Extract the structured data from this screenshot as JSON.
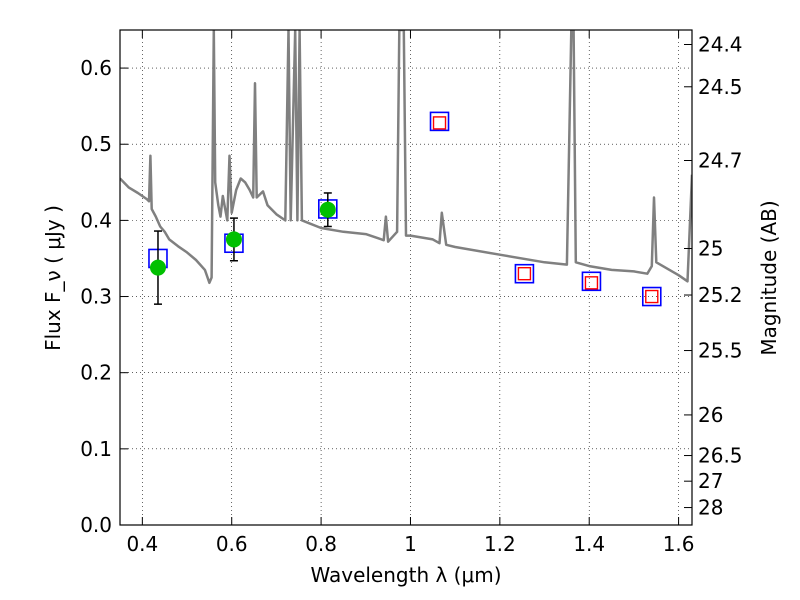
{
  "chart_data": {
    "type": "scatter",
    "title": "",
    "xlabel": "Wavelength  λ (μm)",
    "ylabel": "Flux  F_ν  ( μJy )",
    "y2label": "Magnitude (AB)",
    "xlim": [
      0.35,
      1.63
    ],
    "ylim": [
      0.0,
      0.65
    ],
    "grid": true,
    "legend": "none",
    "x_ticks": [
      "0.4",
      "0.6",
      "0.8",
      "1",
      "1.2",
      "1.4",
      "1.6"
    ],
    "y_ticks": [
      "0.0",
      "0.1",
      "0.2",
      "0.3",
      "0.4",
      "0.5",
      "0.6"
    ],
    "y2_ticks": [
      "24.4",
      "24.5",
      "24.7",
      "25",
      "25.2",
      "25.5",
      "26",
      "26.5",
      "27",
      "28"
    ],
    "series": [
      {
        "marker": "line",
        "color": "#808080",
        "points": [
          [
            0.35,
            0.455
          ],
          [
            0.37,
            0.443
          ],
          [
            0.39,
            0.436
          ],
          [
            0.41,
            0.428
          ],
          [
            0.415,
            0.425
          ],
          [
            0.418,
            0.485
          ],
          [
            0.421,
            0.415
          ],
          [
            0.43,
            0.405
          ],
          [
            0.44,
            0.392
          ],
          [
            0.45,
            0.385
          ],
          [
            0.46,
            0.375
          ],
          [
            0.48,
            0.366
          ],
          [
            0.5,
            0.358
          ],
          [
            0.52,
            0.348
          ],
          [
            0.54,
            0.335
          ],
          [
            0.55,
            0.318
          ],
          [
            0.555,
            0.325
          ],
          [
            0.56,
            0.65
          ],
          [
            0.563,
            0.45
          ],
          [
            0.57,
            0.42
          ],
          [
            0.575,
            0.405
          ],
          [
            0.58,
            0.432
          ],
          [
            0.59,
            0.4
          ],
          [
            0.595,
            0.485
          ],
          [
            0.6,
            0.41
          ],
          [
            0.61,
            0.44
          ],
          [
            0.62,
            0.455
          ],
          [
            0.63,
            0.45
          ],
          [
            0.64,
            0.44
          ],
          [
            0.648,
            0.43
          ],
          [
            0.652,
            0.58
          ],
          [
            0.656,
            0.43
          ],
          [
            0.67,
            0.438
          ],
          [
            0.68,
            0.42
          ],
          [
            0.7,
            0.408
          ],
          [
            0.72,
            0.4
          ],
          [
            0.727,
            0.65
          ],
          [
            0.732,
            0.4
          ],
          [
            0.742,
            0.65
          ],
          [
            0.747,
            0.4
          ],
          [
            0.752,
            0.65
          ],
          [
            0.757,
            0.4
          ],
          [
            0.77,
            0.397
          ],
          [
            0.8,
            0.39
          ],
          [
            0.85,
            0.385
          ],
          [
            0.9,
            0.382
          ],
          [
            0.92,
            0.378
          ],
          [
            0.94,
            0.374
          ],
          [
            0.945,
            0.405
          ],
          [
            0.95,
            0.372
          ],
          [
            0.97,
            0.385
          ],
          [
            0.975,
            0.65
          ],
          [
            0.985,
            0.65
          ],
          [
            0.99,
            0.38
          ],
          [
            1.0,
            0.38
          ],
          [
            1.05,
            0.375
          ],
          [
            1.065,
            0.37
          ],
          [
            1.07,
            0.41
          ],
          [
            1.08,
            0.368
          ],
          [
            1.1,
            0.365
          ],
          [
            1.2,
            0.355
          ],
          [
            1.3,
            0.345
          ],
          [
            1.35,
            0.342
          ],
          [
            1.36,
            0.65
          ],
          [
            1.365,
            0.65
          ],
          [
            1.37,
            0.345
          ],
          [
            1.4,
            0.34
          ],
          [
            1.45,
            0.335
          ],
          [
            1.5,
            0.333
          ],
          [
            1.53,
            0.33
          ],
          [
            1.54,
            0.34
          ],
          [
            1.545,
            0.43
          ],
          [
            1.55,
            0.345
          ],
          [
            1.6,
            0.328
          ],
          [
            1.62,
            0.32
          ],
          [
            1.63,
            0.46
          ]
        ]
      },
      {
        "marker": "open-square",
        "color": "#0000ff",
        "points": [
          [
            0.435,
            0.35
          ],
          [
            0.605,
            0.37
          ],
          [
            0.815,
            0.415
          ],
          [
            1.065,
            0.53
          ],
          [
            1.255,
            0.33
          ],
          [
            1.405,
            0.32
          ],
          [
            1.54,
            0.3
          ]
        ]
      },
      {
        "marker": "small-open-square",
        "color": "#ff0000",
        "points": [
          [
            1.065,
            0.528
          ],
          [
            1.255,
            0.33
          ],
          [
            1.405,
            0.318
          ],
          [
            1.54,
            0.3
          ]
        ]
      },
      {
        "marker": "filled-circle",
        "color": "#00c000",
        "points": [
          [
            0.435,
            0.338
          ],
          [
            0.605,
            0.375
          ],
          [
            0.815,
            0.414
          ]
        ],
        "errors": [
          0.048,
          0.028,
          0.022
        ]
      }
    ]
  }
}
